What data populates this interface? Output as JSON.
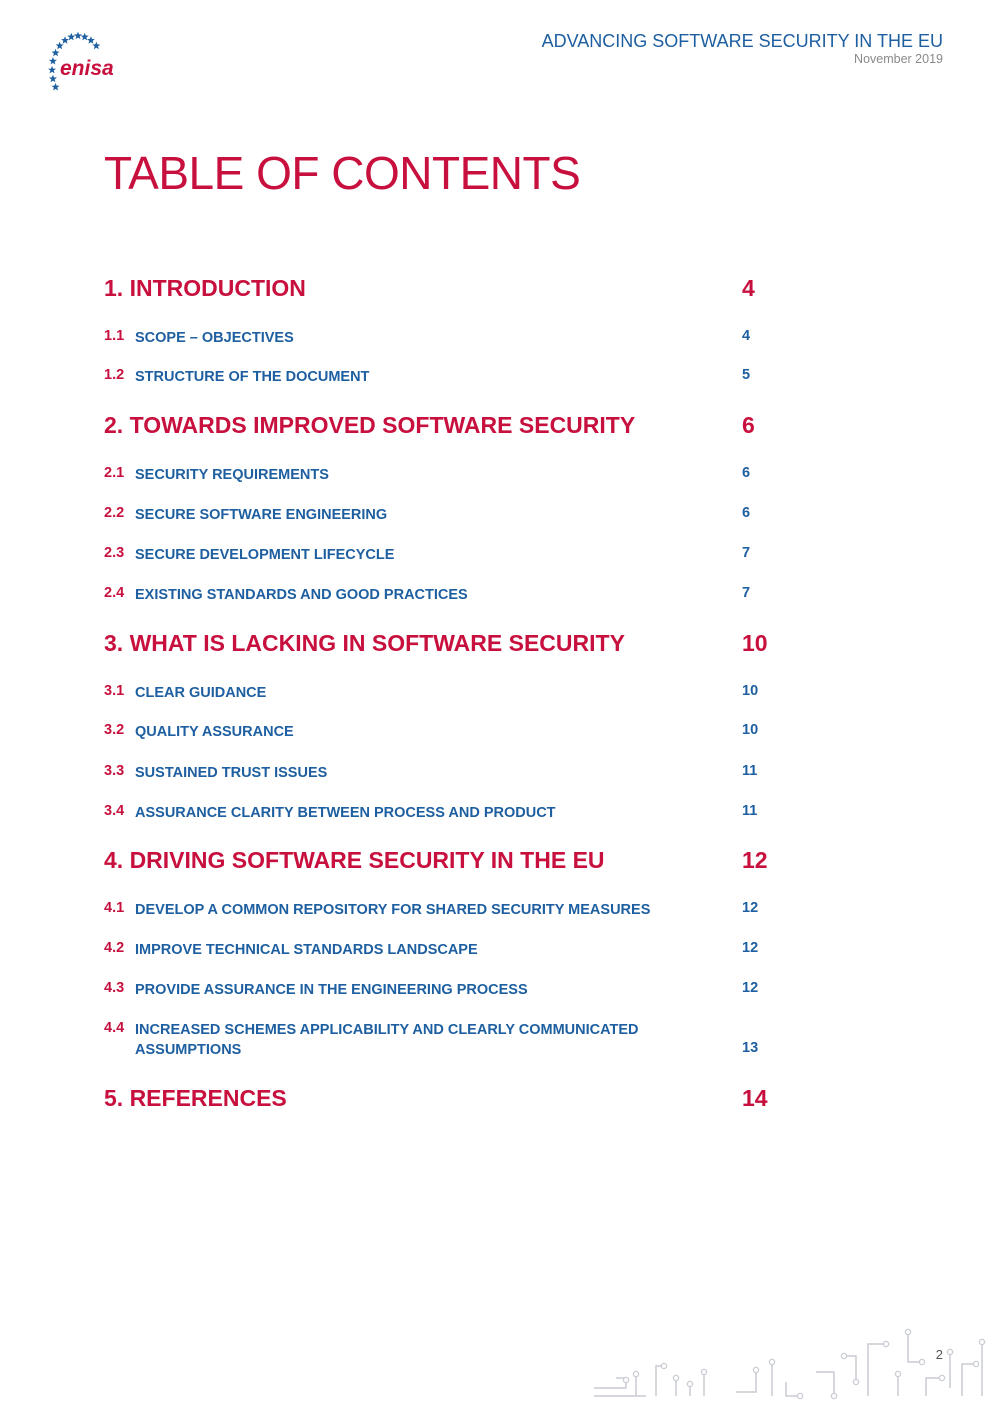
{
  "colors": {
    "accent": "#c8103e",
    "blue": "#1d5fa0",
    "gray": "#8a8a8a",
    "circuit": "#c9ccd3"
  },
  "logo": {
    "text": "enisa",
    "icon": "eu-stars-icon"
  },
  "header": {
    "title": "ADVANCING SOFTWARE SECURITY IN THE EU",
    "date": "November 2019"
  },
  "toc_title": "TABLE OF CONTENTS",
  "chapters": [
    {
      "title": "1. INTRODUCTION",
      "page": "4"
    },
    {
      "title": "2. TOWARDS IMPROVED SOFTWARE SECURITY",
      "page": "6"
    },
    {
      "title": "3. WHAT IS LACKING IN SOFTWARE SECURITY",
      "page": "10"
    },
    {
      "title": "4. DRIVING SOFTWARE SECURITY IN THE EU",
      "page": "12"
    },
    {
      "title": "5. REFERENCES",
      "page": "14"
    }
  ],
  "sections": [
    {
      "num": "1.1",
      "title": "SCOPE – OBJECTIVES",
      "page": "4"
    },
    {
      "num": "1.2",
      "title": "STRUCTURE OF THE DOCUMENT",
      "page": "5"
    },
    {
      "num": "2.1",
      "title": "SECURITY REQUIREMENTS",
      "page": "6"
    },
    {
      "num": "2.2",
      "title": "SECURE SOFTWARE ENGINEERING",
      "page": "6"
    },
    {
      "num": "2.3",
      "title": "SECURE DEVELOPMENT LIFECYCLE",
      "page": "7"
    },
    {
      "num": "2.4",
      "title": "EXISTING STANDARDS AND GOOD PRACTICES",
      "page": "7"
    },
    {
      "num": "3.1",
      "title": "CLEAR GUIDANCE",
      "page": "10"
    },
    {
      "num": "3.2",
      "title": "QUALITY ASSURANCE",
      "page": "10"
    },
    {
      "num": "3.3",
      "title": "SUSTAINED TRUST ISSUES",
      "page": "11"
    },
    {
      "num": "3.4",
      "title": "ASSURANCE CLARITY BETWEEN PROCESS AND PRODUCT",
      "page": "11"
    },
    {
      "num": "4.1",
      "title": "DEVELOP A COMMON REPOSITORY FOR SHARED SECURITY MEASURES",
      "page": "12"
    },
    {
      "num": "4.2",
      "title": "IMPROVE TECHNICAL STANDARDS LANDSCAPE",
      "page": "12"
    },
    {
      "num": "4.3",
      "title": "PROVIDE ASSURANCE IN THE ENGINEERING PROCESS",
      "page": "12"
    },
    {
      "num": "4.4",
      "title": "INCREASED SCHEMES APPLICABILITY AND CLEARLY COMMUNICATED ASSUMPTIONS",
      "page": "13"
    }
  ],
  "page_number": "2",
  "footer_decoration": "circuit-pattern-icon"
}
